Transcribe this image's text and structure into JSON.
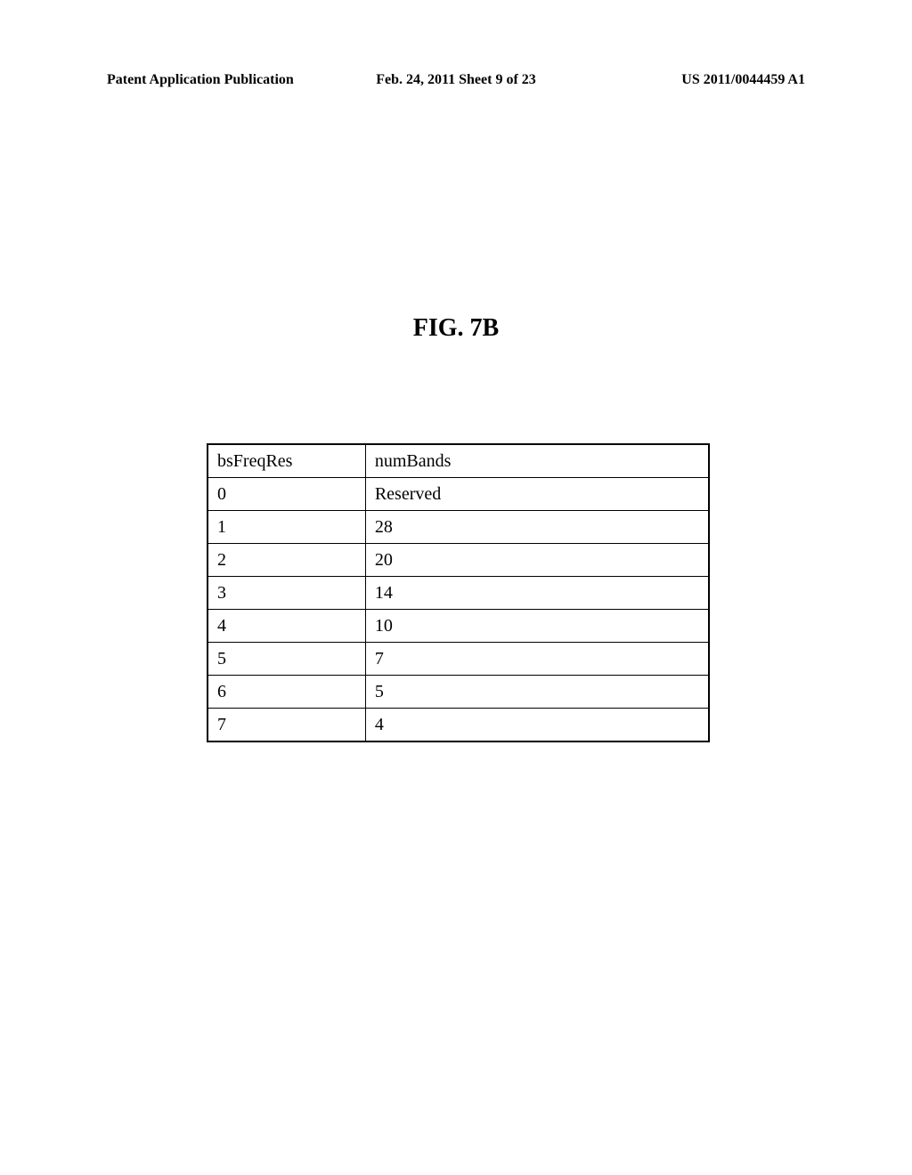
{
  "header": {
    "left": "Patent Application Publication",
    "center": "Feb. 24, 2011  Sheet 9 of 23",
    "right": "US 2011/0044459 A1"
  },
  "figure_title": "FIG. 7B",
  "table": {
    "columns": [
      "bsFreqRes",
      "numBands"
    ],
    "rows": [
      [
        "0",
        "Reserved"
      ],
      [
        "1",
        "28"
      ],
      [
        "2",
        "20"
      ],
      [
        "3",
        "14"
      ],
      [
        "4",
        "10"
      ],
      [
        "5",
        "7"
      ],
      [
        "6",
        "5"
      ],
      [
        "7",
        "4"
      ]
    ],
    "col1_width": 165,
    "col2_width": 400,
    "border_color": "#000000",
    "font_size": 20,
    "text_color": "#000000",
    "background_color": "#ffffff"
  }
}
